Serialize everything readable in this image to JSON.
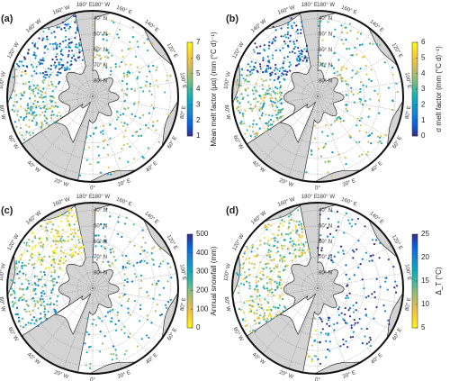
{
  "map": {
    "lon_labels": [
      {
        "value": 0,
        "label": "0°"
      },
      {
        "value": 20,
        "label": "20° E"
      },
      {
        "value": 40,
        "label": "40° E"
      },
      {
        "value": 60,
        "label": "60° E"
      },
      {
        "value": 80,
        "label": "80° E"
      },
      {
        "value": 100,
        "label": "100° E"
      },
      {
        "value": 120,
        "label": "120° E"
      },
      {
        "value": 140,
        "label": "140° E"
      },
      {
        "value": 160,
        "label": "160° E"
      },
      {
        "value": 180,
        "label": "180° E"
      },
      {
        "value": -180,
        "label": "180° W"
      },
      {
        "value": -160,
        "label": "160° W"
      },
      {
        "value": -140,
        "label": "140° W"
      },
      {
        "value": -120,
        "label": "120° W"
      },
      {
        "value": -100,
        "label": "100° W"
      },
      {
        "value": -80,
        "label": "80° W"
      },
      {
        "value": -60,
        "label": "60° W"
      },
      {
        "value": -40,
        "label": "40° W"
      },
      {
        "value": -20,
        "label": "20° W"
      }
    ],
    "lat_labels": [
      {
        "value": 40,
        "label": "40° N"
      },
      {
        "value": 50,
        "label": "50° N"
      },
      {
        "value": 60,
        "label": "60° N"
      },
      {
        "value": 70,
        "label": "70° N"
      },
      {
        "value": 80,
        "label": "80° N"
      }
    ],
    "lat_edge": 35
  },
  "panels": [
    {
      "label": "(a)",
      "colorbar": {
        "label": "Mean melt factor (μα) (mm (°C d)⁻¹)",
        "lim": [
          1,
          7
        ],
        "ticks": [
          1,
          2,
          3,
          4,
          5,
          6,
          7
        ],
        "colors": [
          "#352a87",
          "#0363e1",
          "#1485d4",
          "#06a7c6",
          "#38b99e",
          "#92bf73",
          "#d9ba56",
          "#fcce2e",
          "#f9fb0e"
        ]
      }
    },
    {
      "label": "(b)",
      "colorbar": {
        "label": "σ melt factor (mm (°C d)⁻¹)",
        "lim": [
          0,
          6
        ],
        "ticks": [
          0,
          1,
          2,
          3,
          4,
          5,
          6
        ],
        "colors": [
          "#352a87",
          "#0363e1",
          "#1485d4",
          "#06a7c6",
          "#38b99e",
          "#92bf73",
          "#d9ba56",
          "#fcce2e",
          "#f9fb0e"
        ]
      }
    },
    {
      "label": "(c)",
      "colorbar": {
        "label": "Annual snowfall (mm)",
        "lim": [
          0,
          500
        ],
        "ticks": [
          0,
          100,
          200,
          300,
          400,
          500
        ],
        "colors": [
          "#f9fb0e",
          "#fcce2e",
          "#d9ba56",
          "#92bf73",
          "#38b99e",
          "#06a7c6",
          "#1485d4",
          "#0363e1",
          "#352a87"
        ]
      }
    },
    {
      "label": "(d)",
      "colorbar": {
        "label": "Δ_T (°C)",
        "lim": [
          5,
          25
        ],
        "ticks": [
          5,
          10,
          15,
          20,
          25
        ],
        "colors": [
          "#f9fb0e",
          "#fcce2e",
          "#d9ba56",
          "#92bf73",
          "#38b99e",
          "#06a7c6",
          "#1485d4",
          "#0363e1",
          "#352a87"
        ]
      }
    }
  ]
}
